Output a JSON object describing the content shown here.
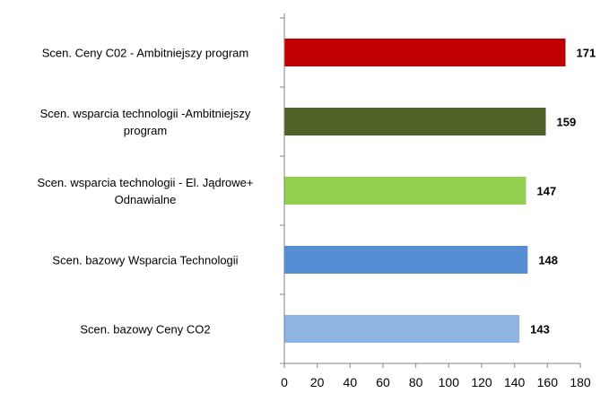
{
  "chart_data": {
    "type": "bar",
    "orientation": "horizontal",
    "title": "",
    "xlabel": "",
    "ylabel": "",
    "xlim": [
      0,
      180
    ],
    "xticks": [
      0,
      20,
      40,
      60,
      80,
      100,
      120,
      140,
      160,
      180
    ],
    "grid": false,
    "legend": "none",
    "categories": [
      [
        "Scen. Ceny C02 - Ambitniejszy program"
      ],
      [
        "Scen. wsparcia technologii  -Ambitniejszy",
        "program"
      ],
      [
        "Scen. wsparcia technologii  - El. Jądrowe+",
        "Odnawialne"
      ],
      [
        "Scen. bazowy Wsparcia Technologii"
      ],
      [
        "Scen. bazowy Ceny CO2"
      ]
    ],
    "values": [
      171,
      159,
      147,
      148,
      143
    ],
    "colors": [
      "#c00000",
      "#4f6228",
      "#92d050",
      "#558ed5",
      "#8eb4e3"
    ]
  }
}
